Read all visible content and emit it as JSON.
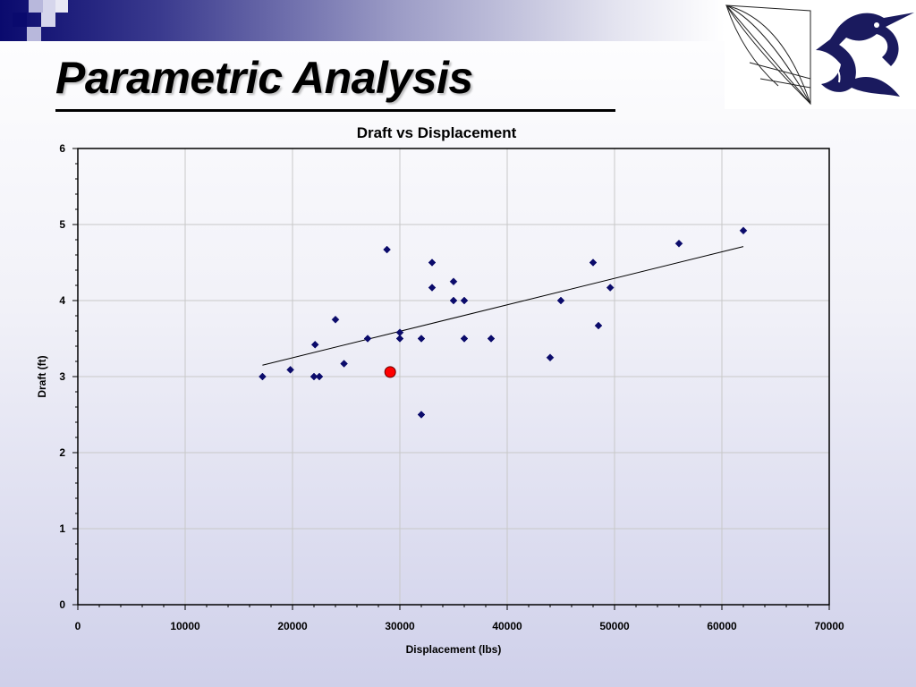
{
  "slide": {
    "title": "Parametric Analysis"
  },
  "colors": {
    "band_dark": "#0a0a6e",
    "marker": "#0b0b6b",
    "highlight": "#ff0000",
    "grid": "#c8c8c8"
  },
  "logos": {
    "left_icon": "sail-sketch-icon",
    "right_icon": "marlin-fish-icon"
  },
  "chart_data": {
    "type": "scatter",
    "title": "Draft vs Displacement",
    "xlabel": "Displacement    (lbs)",
    "ylabel": "Draft     (ft)",
    "xlim": [
      0,
      70000
    ],
    "ylim": [
      0,
      6
    ],
    "x_ticks": [
      0,
      10000,
      20000,
      30000,
      40000,
      50000,
      60000,
      70000
    ],
    "y_ticks": [
      0,
      1,
      2,
      3,
      4,
      5,
      6
    ],
    "grid": true,
    "legend": "none",
    "points": [
      {
        "x": 17200,
        "y": 3.0
      },
      {
        "x": 19800,
        "y": 3.09
      },
      {
        "x": 22000,
        "y": 3.0
      },
      {
        "x": 22100,
        "y": 3.42
      },
      {
        "x": 22500,
        "y": 3.0
      },
      {
        "x": 24000,
        "y": 3.75
      },
      {
        "x": 24800,
        "y": 3.17
      },
      {
        "x": 27000,
        "y": 3.5
      },
      {
        "x": 28800,
        "y": 4.67
      },
      {
        "x": 30000,
        "y": 3.58
      },
      {
        "x": 30000,
        "y": 3.5
      },
      {
        "x": 32000,
        "y": 3.5
      },
      {
        "x": 32000,
        "y": 2.5
      },
      {
        "x": 33000,
        "y": 4.5
      },
      {
        "x": 33000,
        "y": 4.17
      },
      {
        "x": 35000,
        "y": 4.25
      },
      {
        "x": 35000,
        "y": 4.0
      },
      {
        "x": 36000,
        "y": 4.0
      },
      {
        "x": 36000,
        "y": 3.5
      },
      {
        "x": 38500,
        "y": 3.5
      },
      {
        "x": 44000,
        "y": 3.25
      },
      {
        "x": 45000,
        "y": 4.0
      },
      {
        "x": 48000,
        "y": 4.5
      },
      {
        "x": 48500,
        "y": 3.67
      },
      {
        "x": 49600,
        "y": 4.17
      },
      {
        "x": 56000,
        "y": 4.75
      },
      {
        "x": 62000,
        "y": 4.92
      }
    ],
    "highlight_point": {
      "x": 29100,
      "y": 3.06
    },
    "trendline": {
      "x1": 17200,
      "y1": 3.15,
      "x2": 62000,
      "y2": 4.71
    }
  }
}
